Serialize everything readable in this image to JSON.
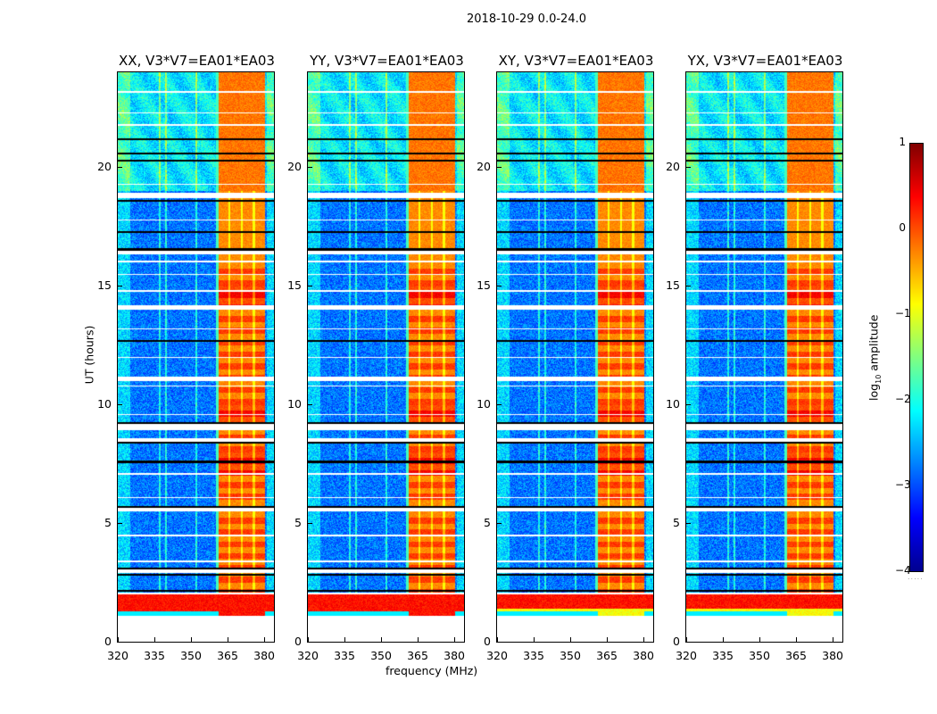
{
  "suptitle": "2018-10-29 0.0-24.0",
  "chart_data": {
    "type": "heatmap",
    "title": "2018-10-29 0.0-24.0",
    "xlabel": "frequency (MHz)",
    "ylabel": "UT (hours)",
    "xlim": [
      320,
      384
    ],
    "ylim": [
      0,
      24
    ],
    "xticks": [
      "320",
      "335",
      "350",
      "365",
      "380"
    ],
    "yticks": [
      "0",
      "5",
      "10",
      "15",
      "20"
    ],
    "panels": [
      {
        "title": "XX, V3*V7=EA01*EA03"
      },
      {
        "title": "YY, V3*V7=EA01*EA03"
      },
      {
        "title": "XY, V3*V7=EA01*EA03"
      },
      {
        "title": "YX, V3*V7=EA01*EA03"
      }
    ],
    "colormap": "jet",
    "colorbar": {
      "label": "log10 amplitude",
      "label_main": "log",
      "label_sub": "10",
      "label_rest": " amplitude",
      "range": [
        -4,
        1
      ],
      "ticks": [
        "1",
        "0",
        "−1",
        "−2",
        "−3",
        "−4"
      ]
    },
    "data_start_hour": 1.1,
    "background_level": -2.8,
    "rfi_band_mhz": [
      361,
      380
    ],
    "rfi_level": -0.3,
    "strong_interval_hours": [
      1.1,
      2.0
    ],
    "strong_level": 0.3,
    "flagged_hours": [
      [
        2.0,
        2.1
      ],
      [
        2.9,
        3.05
      ],
      [
        5.5,
        5.65
      ],
      [
        8.45,
        8.6
      ],
      [
        8.95,
        9.2
      ],
      [
        11.0,
        11.2
      ],
      [
        14.0,
        14.2
      ],
      [
        16.0,
        16.1
      ],
      [
        16.35,
        16.5
      ],
      [
        18.7,
        18.95
      ]
    ]
  }
}
